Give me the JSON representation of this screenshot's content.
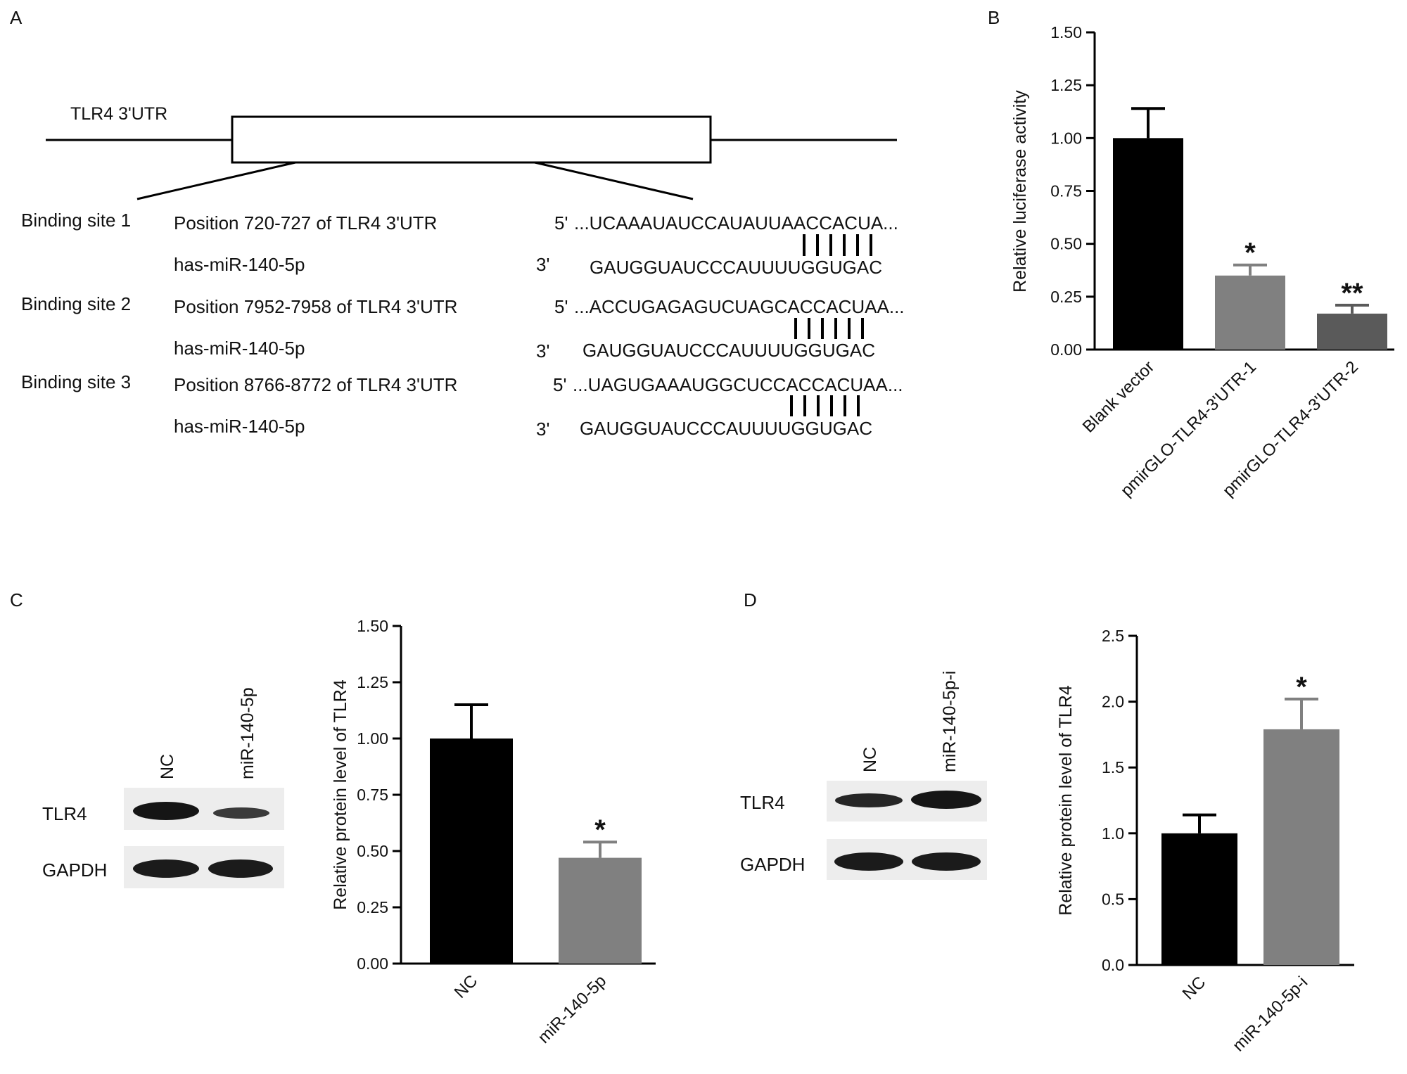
{
  "panels": {
    "a": "A",
    "b": "B",
    "c": "C",
    "d": "D"
  },
  "utr_diagram": {
    "gene_label": "TLR4 3'UTR",
    "sites": [
      {
        "label": "Binding site 1",
        "position": "Position 720-727 of TLR4 3'UTR",
        "prime5": "5'",
        "target": "...UCAAAUAUCCAUAUUAACCACUA...",
        "mirna_name": "has-miR-140-5p",
        "prime3": "3'",
        "mirna_seq": "GAUGGUAUCCCAUUUUGGUGAC"
      },
      {
        "label": "Binding site 2",
        "position": "Position 7952-7958 of TLR4 3'UTR",
        "prime5": "5'",
        "target": "...ACCUGAGAGUCUAGCACCACUAA...",
        "mirna_name": "has-miR-140-5p",
        "prime3": "3'",
        "mirna_seq": "GAUGGUAUCCCAUUUUGGUGAC"
      },
      {
        "label": "Binding site 3",
        "position": "Position 8766-8772 of TLR4 3'UTR",
        "prime5": "5'",
        "target": "...UAGUGAAAUGGCUCCACCACUAA...",
        "mirna_name": "has-miR-140-5p",
        "prime3": "3'",
        "mirna_seq": "GAUGGUAUCCCAUUUUGGUGAC"
      }
    ]
  },
  "blots": {
    "c": {
      "lanes": [
        "NC",
        "miR-140-5p"
      ],
      "rows": [
        "TLR4",
        "GAPDH"
      ]
    },
    "d": {
      "lanes": [
        "NC",
        "miR-140-5p-i"
      ],
      "rows": [
        "TLR4",
        "GAPDH"
      ]
    }
  },
  "chart_data": [
    {
      "panel": "B",
      "type": "bar",
      "categories": [
        "Blank vector",
        "pmirGLO-TLR4-3'UTR-1",
        "pmirGLO-TLR4-3'UTR-2"
      ],
      "values": [
        1.0,
        0.35,
        0.17
      ],
      "errors": [
        0.14,
        0.05,
        0.04
      ],
      "significance": [
        "",
        "*",
        "**"
      ],
      "bar_colors": [
        "#000000",
        "#808080",
        "#5a5a5a"
      ],
      "ylabel": "Relative luciferase activity",
      "xlabel": "",
      "ylim": [
        0,
        1.5
      ],
      "yticks": [
        "0.00",
        "0.25",
        "0.50",
        "0.75",
        "1.00",
        "1.25",
        "1.50"
      ],
      "grid": false
    },
    {
      "panel": "C",
      "type": "bar",
      "categories": [
        "NC",
        "miR-140-5p"
      ],
      "values": [
        1.0,
        0.47
      ],
      "errors": [
        0.15,
        0.07
      ],
      "significance": [
        "",
        "*"
      ],
      "bar_colors": [
        "#000000",
        "#808080"
      ],
      "ylabel": "Relative protein level of TLR4",
      "xlabel": "",
      "ylim": [
        0,
        1.5
      ],
      "yticks": [
        "0.00",
        "0.25",
        "0.50",
        "0.75",
        "1.00",
        "1.25",
        "1.50"
      ],
      "grid": false
    },
    {
      "panel": "D",
      "type": "bar",
      "categories": [
        "NC",
        "miR-140-5p-i"
      ],
      "values": [
        1.0,
        1.79
      ],
      "errors": [
        0.14,
        0.23
      ],
      "significance": [
        "",
        "*"
      ],
      "bar_colors": [
        "#000000",
        "#808080"
      ],
      "ylabel": "Relative protein level of TLR4",
      "xlabel": "",
      "ylim": [
        0,
        2.5
      ],
      "yticks": [
        "0.0",
        "0.5",
        "1.0",
        "1.5",
        "2.0",
        "2.5"
      ],
      "grid": false
    }
  ]
}
